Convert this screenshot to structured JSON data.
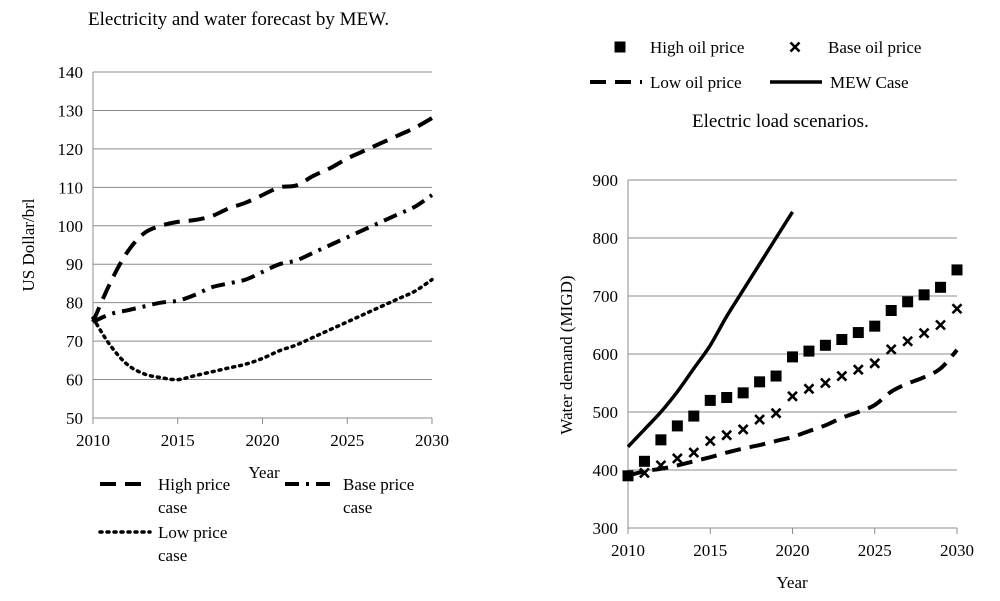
{
  "chart_data": [
    {
      "type": "line",
      "title": "Electricity and water forecast by MEW.",
      "xlabel": "Year",
      "ylabel": "US Dollar/brl",
      "xlim": [
        2010,
        2030
      ],
      "ylim": [
        50,
        140
      ],
      "xticks": [
        "2010",
        "2015",
        "2020",
        "2025",
        "2030"
      ],
      "yticks": [
        "50",
        "60",
        "70",
        "80",
        "90",
        "100",
        "110",
        "120",
        "130",
        "140"
      ],
      "grid": true,
      "legend_position": "bottom",
      "series": [
        {
          "name": "High price case",
          "legend_lines": [
            "High price",
            "case"
          ],
          "style": "dashed",
          "x": [
            2010,
            2011,
            2012,
            2013,
            2014,
            2015,
            2016,
            2017,
            2018,
            2019,
            2020,
            2021,
            2022,
            2023,
            2024,
            2025,
            2026,
            2027,
            2028,
            2029,
            2030
          ],
          "values": [
            75,
            85,
            93,
            98,
            100,
            101,
            101.5,
            102.5,
            104.5,
            106,
            108,
            110,
            110.5,
            113,
            115,
            117.5,
            119.5,
            121.5,
            123.5,
            125.5,
            128
          ]
        },
        {
          "name": "Base price case",
          "legend_lines": [
            "Base price",
            "case"
          ],
          "style": "dashdot",
          "x": [
            2010,
            2011,
            2012,
            2013,
            2014,
            2015,
            2016,
            2017,
            2018,
            2019,
            2020,
            2021,
            2022,
            2023,
            2024,
            2025,
            2026,
            2027,
            2028,
            2029,
            2030
          ],
          "values": [
            75,
            77,
            78,
            79,
            80,
            80.5,
            82,
            84,
            85,
            86,
            88,
            90,
            91,
            93,
            95,
            97,
            99,
            101,
            103,
            105,
            108
          ]
        },
        {
          "name": "Low price case",
          "legend_lines": [
            "Low price",
            "case"
          ],
          "style": "dotted",
          "x": [
            2010,
            2011,
            2012,
            2013,
            2014,
            2015,
            2016,
            2017,
            2018,
            2019,
            2020,
            2021,
            2022,
            2023,
            2024,
            2025,
            2026,
            2027,
            2028,
            2029,
            2030
          ],
          "values": [
            76,
            69,
            64,
            61.5,
            60.5,
            60,
            61,
            62,
            63,
            64,
            65.5,
            67.5,
            69,
            71,
            73,
            75,
            77,
            79,
            81,
            83,
            86
          ]
        }
      ]
    },
    {
      "type": "line",
      "title": "Electric load scenarios.",
      "xlabel": "Year",
      "ylabel": "Water demand (MIGD)",
      "xlim": [
        2010,
        2030
      ],
      "ylim": [
        300,
        900
      ],
      "xticks": [
        "2010",
        "2015",
        "2020",
        "2025",
        "2030"
      ],
      "yticks": [
        "300",
        "400",
        "500",
        "600",
        "700",
        "800",
        "900"
      ],
      "grid": true,
      "legend_position": "top",
      "series": [
        {
          "name": "High oil price",
          "style": "square-markers",
          "x": [
            2010,
            2011,
            2012,
            2013,
            2014,
            2015,
            2016,
            2017,
            2018,
            2019,
            2020,
            2021,
            2022,
            2023,
            2024,
            2025,
            2026,
            2027,
            2028,
            2029,
            2030
          ],
          "values": [
            390,
            415,
            452,
            476,
            493,
            520,
            525,
            533,
            552,
            562,
            595,
            605,
            615,
            625,
            637,
            648,
            675,
            690,
            702,
            715,
            745
          ]
        },
        {
          "name": "Base oil price",
          "style": "x-markers",
          "x": [
            2010,
            2011,
            2012,
            2013,
            2014,
            2015,
            2016,
            2017,
            2018,
            2019,
            2020,
            2021,
            2022,
            2023,
            2024,
            2025,
            2026,
            2027,
            2028,
            2029,
            2030
          ],
          "values": [
            390,
            395,
            408,
            420,
            430,
            450,
            460,
            470,
            487,
            498,
            527,
            540,
            550,
            562,
            573,
            584,
            608,
            622,
            636,
            650,
            678
          ]
        },
        {
          "name": "Low oil price",
          "style": "dashed",
          "x": [
            2010,
            2011,
            2012,
            2013,
            2014,
            2015,
            2016,
            2017,
            2018,
            2019,
            2020,
            2021,
            2022,
            2023,
            2024,
            2025,
            2026,
            2027,
            2028,
            2029,
            2030
          ],
          "values": [
            390,
            398,
            402,
            408,
            415,
            422,
            430,
            437,
            443,
            450,
            457,
            467,
            477,
            490,
            500,
            512,
            535,
            549,
            560,
            575,
            607
          ]
        },
        {
          "name": "MEW Case",
          "style": "solid",
          "x": [
            2010,
            2011,
            2012,
            2013,
            2014,
            2015,
            2016,
            2017,
            2018,
            2019,
            2020
          ],
          "values": [
            440,
            470,
            500,
            535,
            575,
            615,
            665,
            710,
            755,
            800,
            845
          ]
        }
      ]
    }
  ]
}
